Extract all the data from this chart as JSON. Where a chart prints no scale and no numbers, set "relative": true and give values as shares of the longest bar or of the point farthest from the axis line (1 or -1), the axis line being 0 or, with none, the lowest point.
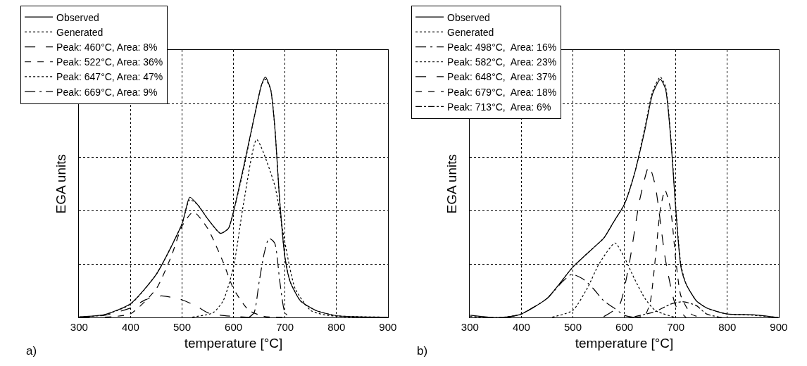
{
  "chart_data": [
    {
      "type": "line",
      "relative": true,
      "xlabel": "temperature [°C]",
      "ylabel": "EGA units",
      "annotations": [
        "a)"
      ],
      "xlim": [
        300,
        900
      ],
      "xticks": [
        300,
        400,
        500,
        600,
        700,
        800,
        900
      ],
      "grid": true,
      "legend": "top left",
      "series": [
        {
          "name": "Observed",
          "color": "#000000",
          "line_style": "solid",
          "x": [
            300,
            350,
            400,
            450,
            500,
            515,
            530,
            550,
            575,
            590,
            600,
            620,
            640,
            655,
            662,
            672,
            680,
            690,
            700,
            710,
            730,
            760,
            800,
            900
          ],
          "values": [
            0.003,
            0.013,
            0.058,
            0.18,
            0.39,
            0.5,
            0.47,
            0.41,
            0.35,
            0.37,
            0.44,
            0.63,
            0.83,
            0.97,
            1.0,
            0.95,
            0.8,
            0.48,
            0.25,
            0.15,
            0.07,
            0.03,
            0.008,
            0.002
          ]
        },
        {
          "name": "Generated",
          "color": "#000000",
          "line_style": "dotted",
          "x": [
            300,
            350,
            400,
            450,
            500,
            515,
            530,
            550,
            575,
            590,
            600,
            620,
            640,
            655,
            662,
            672,
            680,
            690,
            700,
            710,
            730,
            760,
            800,
            900
          ],
          "values": [
            0.002,
            0.012,
            0.056,
            0.18,
            0.39,
            0.49,
            0.47,
            0.41,
            0.35,
            0.37,
            0.44,
            0.62,
            0.83,
            0.97,
            0.99,
            0.95,
            0.8,
            0.48,
            0.25,
            0.15,
            0.07,
            0.03,
            0.008,
            0.002
          ]
        },
        {
          "name": "Peak: 460°C, Area: 8%",
          "color": "#000000",
          "line_style": "longdash",
          "x": [
            300,
            350,
            400,
            430,
            460,
            500,
            530,
            550,
            575,
            600,
            630
          ],
          "values": [
            0.001,
            0.01,
            0.04,
            0.075,
            0.09,
            0.074,
            0.045,
            0.02,
            0.01,
            0.005,
            0.001
          ]
        },
        {
          "name": "Peak: 522°C, Area: 36%",
          "color": "#000000",
          "line_style": "dashed",
          "x": [
            350,
            400,
            450,
            480,
            500,
            522,
            550,
            580,
            600,
            630,
            660,
            700
          ],
          "values": [
            0.002,
            0.016,
            0.12,
            0.26,
            0.38,
            0.44,
            0.37,
            0.23,
            0.12,
            0.03,
            0.005,
            0.001
          ]
        },
        {
          "name": "Peak: 647°C, Area: 47%",
          "color": "#000000",
          "line_style": "dotted",
          "x": [
            520,
            560,
            580,
            600,
            620,
            645,
            680,
            700,
            720,
            750,
            780,
            850
          ],
          "values": [
            0.002,
            0.02,
            0.07,
            0.21,
            0.48,
            0.74,
            0.55,
            0.31,
            0.12,
            0.03,
            0.01,
            0.001
          ]
        },
        {
          "name": "Peak: 669°C, Area: 9%",
          "color": "#000000",
          "line_style": "longdashdot",
          "x": [
            630,
            640,
            650,
            660,
            669,
            680,
            690,
            700,
            710
          ],
          "values": [
            0.001,
            0.02,
            0.15,
            0.27,
            0.33,
            0.31,
            0.15,
            0.02,
            0.001
          ]
        }
      ]
    },
    {
      "type": "line",
      "relative": true,
      "xlabel": "temperature [°C]",
      "ylabel": "EGA units",
      "annotations": [
        "b)"
      ],
      "xlim": [
        300,
        900
      ],
      "xticks": [
        300,
        400,
        500,
        600,
        700,
        800,
        900
      ],
      "grid": true,
      "legend": "top left",
      "series": [
        {
          "name": "Observed",
          "color": "#000000",
          "line_style": "solid",
          "x": [
            300,
            350,
            380,
            400,
            450,
            500,
            540,
            560,
            580,
            600,
            620,
            640,
            655,
            670,
            680,
            690,
            700,
            710,
            720,
            740,
            760,
            800,
            850,
            900
          ],
          "values": [
            0.01,
            0.0,
            0.005,
            0.015,
            0.08,
            0.21,
            0.29,
            0.33,
            0.4,
            0.47,
            0.6,
            0.78,
            0.93,
            0.99,
            0.95,
            0.75,
            0.45,
            0.21,
            0.14,
            0.07,
            0.04,
            0.015,
            0.012,
            0.0
          ]
        },
        {
          "name": "Generated",
          "color": "#000000",
          "line_style": "dotted",
          "x": [
            300,
            350,
            380,
            400,
            450,
            500,
            540,
            560,
            580,
            600,
            620,
            640,
            655,
            670,
            680,
            690,
            700,
            710,
            720,
            740,
            760,
            800,
            850,
            900
          ],
          "values": [
            0.005,
            0.0,
            0.005,
            0.015,
            0.08,
            0.21,
            0.29,
            0.33,
            0.4,
            0.47,
            0.6,
            0.79,
            0.94,
            1.0,
            0.96,
            0.76,
            0.46,
            0.22,
            0.14,
            0.07,
            0.04,
            0.015,
            0.01,
            0.0
          ]
        },
        {
          "name": "Peak: 498°C,  Area: 16%",
          "color": "#000000",
          "line_style": "longdashdot",
          "x": [
            370,
            400,
            450,
            480,
            498,
            520,
            540,
            560,
            580,
            600,
            620
          ],
          "values": [
            0.001,
            0.015,
            0.08,
            0.15,
            0.18,
            0.16,
            0.12,
            0.07,
            0.04,
            0.01,
            0.0
          ]
        },
        {
          "name": "Peak: 582°C,  Area: 23%",
          "color": "#000000",
          "line_style": "dotted",
          "x": [
            460,
            500,
            530,
            550,
            582,
            600,
            620,
            640,
            660,
            700
          ],
          "values": [
            0.002,
            0.03,
            0.13,
            0.22,
            0.31,
            0.25,
            0.16,
            0.08,
            0.03,
            0.0
          ]
        },
        {
          "name": "Peak: 648°C,  Area: 37%",
          "color": "#000000",
          "line_style": "longdash",
          "x": [
            560,
            590,
            610,
            630,
            648,
            660,
            680,
            700,
            720
          ],
          "values": [
            0.004,
            0.05,
            0.23,
            0.49,
            0.63,
            0.55,
            0.24,
            0.05,
            0.0
          ]
        },
        {
          "name": "Peak: 679°C,  Area: 18%",
          "color": "#000000",
          "line_style": "dashed",
          "x": [
            620,
            640,
            650,
            660,
            670,
            679,
            690,
            700,
            710,
            730,
            750
          ],
          "values": [
            0.0,
            0.01,
            0.06,
            0.24,
            0.45,
            0.53,
            0.45,
            0.24,
            0.09,
            0.015,
            0.0
          ]
        },
        {
          "name": "Peak: 713°C,  Area: 6%",
          "color": "#000000",
          "line_style": "dashdot",
          "x": [
            620,
            660,
            690,
            713,
            740,
            760,
            790
          ],
          "values": [
            0.004,
            0.025,
            0.056,
            0.066,
            0.05,
            0.015,
            0.0
          ]
        }
      ]
    }
  ]
}
